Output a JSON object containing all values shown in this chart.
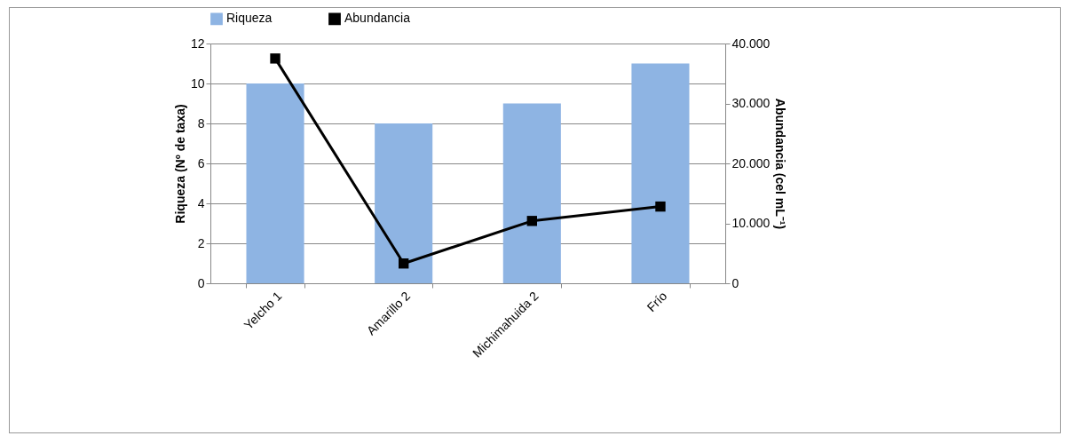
{
  "chart_data": {
    "type": "bar",
    "categories": [
      "Yelcho 1",
      "Amarillo 2",
      "Michimahuida 2",
      "Frío"
    ],
    "ylabel": "Riqueza (Nº de taxa)",
    "y2label": "Abundancia (cel mL⁻¹)",
    "series": [
      {
        "name": "Riqueza",
        "color": "#8eb4e3",
        "values": [
          10,
          8,
          9,
          11
        ]
      },
      {
        "name": "Abundancia",
        "type": "line",
        "axis": "y2",
        "color": "#000000",
        "marker": "square",
        "values": [
          37500,
          3300,
          10400,
          12800
        ]
      }
    ],
    "ylim": [
      0,
      12
    ],
    "yticks": [
      0,
      2,
      4,
      6,
      8,
      10,
      12
    ],
    "y2lim": [
      0,
      40000
    ],
    "y2ticks": [
      0,
      {
        "value": 10000,
        "label": "10.000"
      },
      {
        "value": 20000,
        "label": "20.000"
      },
      {
        "value": 30000,
        "label": "30.000"
      },
      {
        "value": 40000,
        "label": "40.000"
      }
    ],
    "grid": "y",
    "legend": "top"
  }
}
